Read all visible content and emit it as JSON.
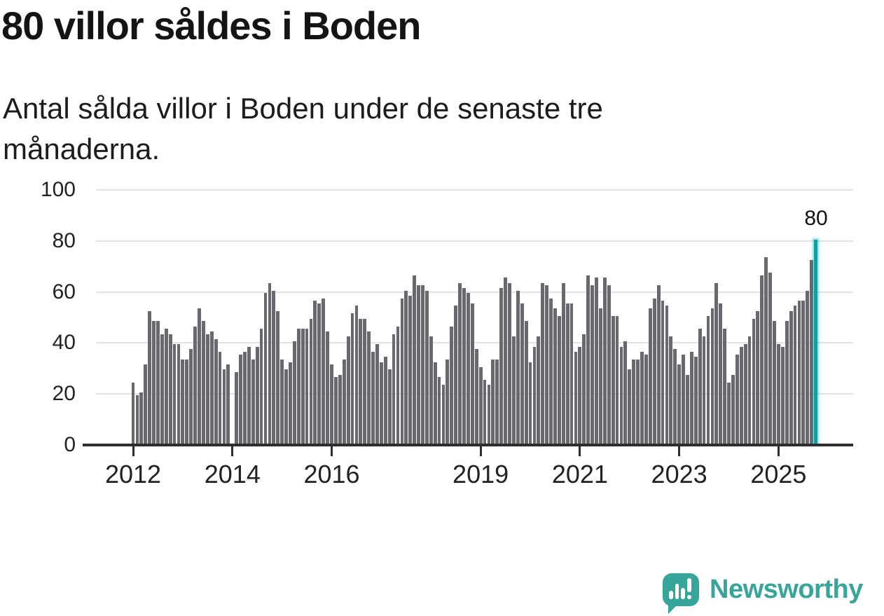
{
  "header": {
    "title": "80 villor såldes i Boden",
    "subtitle": "Antal sålda villor i Boden under de senaste tre månaderna."
  },
  "chart_data": {
    "type": "bar",
    "title": "80 villor såldes i Boden",
    "subtitle": "Antal sålda villor i Boden under de senaste tre månaderna.",
    "xlabel": "",
    "ylabel": "",
    "ylim": [
      0,
      100
    ],
    "grid": "horizontal",
    "legend": "none",
    "start": "2012",
    "frequency": "monthly",
    "y_ticks": [
      100,
      80,
      60,
      40,
      20,
      0
    ],
    "x_ticks": [
      {
        "label": "2012",
        "month_index": 0
      },
      {
        "label": "2014",
        "month_index": 24
      },
      {
        "label": "2016",
        "month_index": 48
      },
      {
        "label": "2019",
        "month_index": 84
      },
      {
        "label": "2021",
        "month_index": 108
      },
      {
        "label": "2023",
        "month_index": 132
      },
      {
        "label": "2025",
        "month_index": 156
      }
    ],
    "values": [
      24,
      19,
      20,
      31,
      52,
      48,
      48,
      43,
      45,
      43,
      39,
      39,
      33,
      33,
      37,
      46,
      53,
      48,
      43,
      44,
      41,
      36,
      29,
      31,
      0,
      28,
      35,
      36,
      38,
      33,
      38,
      45,
      59,
      63,
      60,
      52,
      33,
      29,
      32,
      40,
      45,
      45,
      45,
      49,
      56,
      55,
      57,
      44,
      31,
      26,
      27,
      33,
      42,
      51,
      54,
      49,
      49,
      44,
      36,
      39,
      32,
      34,
      29,
      43,
      46,
      57,
      60,
      58,
      66,
      62,
      62,
      60,
      42,
      32,
      26,
      23,
      33,
      46,
      54,
      63,
      61,
      59,
      55,
      37,
      30,
      25,
      23,
      33,
      33,
      61,
      65,
      63,
      42,
      60,
      55,
      48,
      32,
      38,
      42,
      63,
      62,
      57,
      53,
      50,
      63,
      55,
      55,
      36,
      38,
      43,
      66,
      62,
      65,
      53,
      65,
      62,
      50,
      50,
      38,
      40,
      29,
      33,
      33,
      36,
      35,
      53,
      57,
      62,
      56,
      54,
      42,
      37,
      31,
      35,
      27,
      36,
      34,
      45,
      42,
      50,
      53,
      63,
      55,
      45,
      24,
      27,
      35,
      38,
      39,
      42,
      49,
      52,
      66,
      73,
      67,
      48,
      39,
      38,
      48,
      52,
      54,
      56,
      56,
      60,
      72
    ],
    "highlight": {
      "month_index": 165,
      "value": 80,
      "label": "80"
    }
  },
  "colors": {
    "bar": "#68686f",
    "highlight": "#0f9ea2",
    "highlight_glow": "rgba(15,158,162,0.25)",
    "grid": "#e3e3e3",
    "axis": "#2e2e2e",
    "text": "#222222",
    "logo": "#38a59b"
  },
  "logo": {
    "text": "Newsworthy",
    "icon": "newsworthy-bubble-bar-chart-icon"
  }
}
